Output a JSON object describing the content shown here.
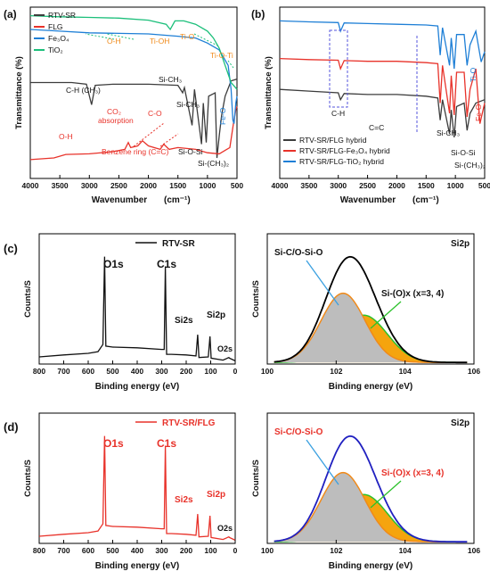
{
  "chart_data": [
    {
      "panel": "(a)",
      "type": "line",
      "xlabel": "Wavenumber",
      "xlabel_unit": "(cm⁻¹)",
      "ylabel": "Transmittance (%)",
      "xlim": [
        4000,
        500
      ],
      "x_ticks": [
        "4000",
        "3500",
        "3000",
        "2500",
        "2000",
        "1500",
        "1000",
        "500"
      ],
      "legend": [
        "RTV-SR",
        "FLG",
        "Fe₃O₄",
        "TiO₂"
      ],
      "series": [
        {
          "name": "RTV-SR",
          "color": "#3c3c3c",
          "points": [
            [
              4000,
              2.8
            ],
            [
              3300,
              2.8
            ],
            [
              3050,
              2.75
            ],
            [
              2962,
              2.15
            ],
            [
              2900,
              2.72
            ],
            [
              2600,
              2.75
            ],
            [
              2000,
              2.75
            ],
            [
              1500,
              2.72
            ],
            [
              1420,
              2.5
            ],
            [
              1390,
              2.65
            ],
            [
              1260,
              1.55
            ],
            [
              1220,
              2.6
            ],
            [
              1100,
              1.0
            ],
            [
              1070,
              2.2
            ],
            [
              1020,
              1.05
            ],
            [
              980,
              2.4
            ],
            [
              870,
              2.5
            ],
            [
              840,
              0.6
            ],
            [
              800,
              1.25
            ],
            [
              760,
              1.85
            ],
            [
              700,
              2.4
            ],
            [
              600,
              2.85
            ],
            [
              500,
              2.9
            ]
          ]
        },
        {
          "name": "FLG",
          "color": "#e8322a",
          "points": [
            [
              4000,
              0.55
            ],
            [
              3600,
              0.6
            ],
            [
              3400,
              0.7
            ],
            [
              3000,
              0.72
            ],
            [
              2600,
              0.78
            ],
            [
              2400,
              0.85
            ],
            [
              2340,
              1.05
            ],
            [
              2300,
              0.9
            ],
            [
              2180,
              0.95
            ],
            [
              2100,
              1.1
            ],
            [
              2000,
              0.95
            ],
            [
              1800,
              0.85
            ],
            [
              1740,
              1.0
            ],
            [
              1650,
              0.85
            ],
            [
              1500,
              0.9
            ],
            [
              1200,
              0.85
            ],
            [
              1000,
              0.75
            ],
            [
              800,
              0.72
            ],
            [
              620,
              0.9
            ],
            [
              560,
              1.6
            ],
            [
              520,
              2.0
            ],
            [
              500,
              2.1
            ]
          ]
        },
        {
          "name": "Fe₃O₄",
          "color": "#1e7fd6",
          "points": [
            [
              4000,
              4.35
            ],
            [
              3500,
              4.3
            ],
            [
              3000,
              4.25
            ],
            [
              2000,
              4.22
            ],
            [
              1500,
              4.15
            ],
            [
              1200,
              4.1
            ],
            [
              1000,
              3.95
            ],
            [
              800,
              3.75
            ],
            [
              650,
              3.3
            ],
            [
              600,
              2.6
            ],
            [
              570,
              1.7
            ],
            [
              550,
              1.6
            ],
            [
              520,
              2.2
            ],
            [
              500,
              2.4
            ]
          ]
        },
        {
          "name": "TiO₂",
          "color": "#1bbf7a",
          "points": [
            [
              4000,
              4.75
            ],
            [
              3500,
              4.72
            ],
            [
              3000,
              4.7
            ],
            [
              2500,
              4.68
            ],
            [
              2000,
              4.62
            ],
            [
              1700,
              4.5
            ],
            [
              1630,
              4.35
            ],
            [
              1550,
              4.6
            ],
            [
              1400,
              4.6
            ],
            [
              1200,
              4.5
            ],
            [
              1000,
              4.3
            ],
            [
              900,
              4.1
            ],
            [
              800,
              3.8
            ],
            [
              700,
              3.3
            ],
            [
              600,
              2.8
            ],
            [
              550,
              2.7
            ],
            [
              500,
              2.6
            ]
          ]
        }
      ],
      "annotations": [
        "O-H",
        "Ti-OH",
        "Ti-O",
        "Ti-O-Ti",
        "C-H (CH₃)",
        "Si-CH₃",
        "Si-CH₃",
        "CO₂",
        "absorption",
        "C-O",
        "O-H",
        "Benzene ring (C=C)",
        "Si-O-Si",
        "Si-(CH₃)₂",
        "Fe-O"
      ]
    },
    {
      "panel": "(b)",
      "type": "line",
      "xlabel": "Wavenumber",
      "xlabel_unit": "(cm⁻¹)",
      "ylabel": "Transmittance (%)",
      "xlim": [
        4000,
        500
      ],
      "x_ticks": [
        "4000",
        "3500",
        "3000",
        "2500",
        "2000",
        "1500",
        "1000",
        "500"
      ],
      "legend": [
        "RTV-SR/FLG hybrid",
        "RTV-SR/FLG-Fe₃O₄ hybrid",
        "RTV-SR/FLG-TiO₂ hybrid"
      ],
      "series": [
        {
          "name": "RTV-SR/FLG hybrid",
          "color": "#3c3c3c",
          "points": [
            [
              4000,
              2.6
            ],
            [
              3500,
              2.55
            ],
            [
              3000,
              2.5
            ],
            [
              2962,
              2.3
            ],
            [
              2900,
              2.48
            ],
            [
              2500,
              2.45
            ],
            [
              2000,
              2.45
            ],
            [
              1500,
              2.4
            ],
            [
              1300,
              2.35
            ],
            [
              1260,
              1.7
            ],
            [
              1220,
              2.3
            ],
            [
              1100,
              1.3
            ],
            [
              1070,
              2.0
            ],
            [
              1020,
              1.2
            ],
            [
              980,
              2.1
            ],
            [
              850,
              2.2
            ],
            [
              800,
              1.4
            ],
            [
              750,
              1.9
            ],
            [
              650,
              2.2
            ],
            [
              500,
              2.3
            ]
          ]
        },
        {
          "name": "RTV-SR/FLG-Fe₃O₄ hybrid",
          "color": "#e8322a",
          "points": [
            [
              4000,
              3.5
            ],
            [
              3500,
              3.47
            ],
            [
              3000,
              3.45
            ],
            [
              2962,
              3.2
            ],
            [
              2900,
              3.44
            ],
            [
              2500,
              3.42
            ],
            [
              2000,
              3.42
            ],
            [
              1500,
              3.38
            ],
            [
              1300,
              3.35
            ],
            [
              1260,
              2.2
            ],
            [
              1220,
              3.3
            ],
            [
              1100,
              1.9
            ],
            [
              1070,
              3.0
            ],
            [
              1020,
              1.85
            ],
            [
              980,
              3.1
            ],
            [
              850,
              3.1
            ],
            [
              800,
              1.8
            ],
            [
              750,
              2.6
            ],
            [
              650,
              3.2
            ],
            [
              580,
              1.6
            ],
            [
              500,
              2.2
            ]
          ]
        },
        {
          "name": "RTV-SR/FLG-TiO₂ hybrid",
          "color": "#1e7fd6",
          "points": [
            [
              4000,
              4.6
            ],
            [
              3500,
              4.57
            ],
            [
              3000,
              4.55
            ],
            [
              2962,
              4.3
            ],
            [
              2900,
              4.54
            ],
            [
              2500,
              4.52
            ],
            [
              2000,
              4.5
            ],
            [
              1500,
              4.48
            ],
            [
              1300,
              4.45
            ],
            [
              1260,
              3.6
            ],
            [
              1220,
              4.4
            ],
            [
              1100,
              3.3
            ],
            [
              1070,
              4.1
            ],
            [
              1020,
              3.2
            ],
            [
              980,
              4.2
            ],
            [
              850,
              4.2
            ],
            [
              800,
              3.3
            ],
            [
              750,
              3.9
            ],
            [
              650,
              4.3
            ],
            [
              560,
              3.4
            ],
            [
              500,
              3.7
            ]
          ]
        }
      ],
      "annotations": [
        "C-H",
        "C=C",
        "Si-CH₃",
        "Si-O-Si",
        "Si-(CH₃)₂",
        "Ti-O",
        "Fe-O"
      ]
    },
    {
      "panel": "(c)",
      "type": "line",
      "xlabel": "Binding energy (eV)",
      "ylabel": "Counts/S",
      "xlim": [
        800,
        0
      ],
      "x_ticks": [
        "800",
        "700",
        "600",
        "500",
        "400",
        "300",
        "200",
        "100",
        "0"
      ],
      "legend": [
        "RTV-SR"
      ],
      "series": [
        {
          "name": "RTV-SR",
          "color": "#111111",
          "points": [
            [
              800,
              0.22
            ],
            [
              700,
              0.28
            ],
            [
              600,
              0.33
            ],
            [
              560,
              0.38
            ],
            [
              540,
              0.6
            ],
            [
              533,
              3.3
            ],
            [
              528,
              0.55
            ],
            [
              500,
              0.52
            ],
            [
              400,
              0.5
            ],
            [
              300,
              0.45
            ],
            [
              290,
              0.45
            ],
            [
              285,
              3.0
            ],
            [
              280,
              0.3
            ],
            [
              260,
              0.3
            ],
            [
              200,
              0.28
            ],
            [
              160,
              0.25
            ],
            [
              153,
              0.9
            ],
            [
              148,
              0.2
            ],
            [
              110,
              0.22
            ],
            [
              103,
              0.85
            ],
            [
              98,
              0.18
            ],
            [
              50,
              0.12
            ],
            [
              26,
              0.2
            ],
            [
              24,
              0.18
            ],
            [
              0,
              0.1
            ]
          ]
        }
      ],
      "peak_labels": [
        "O1s",
        "C1s",
        "Si2s",
        "Si2p",
        "O2s"
      ]
    },
    {
      "panel": "(c) Si2p",
      "type": "area",
      "xlabel": "Binding energy (eV)",
      "ylabel": "Counts/S",
      "xlim": [
        100,
        106
      ],
      "x_ticks": [
        "100",
        "102",
        "104",
        "106"
      ],
      "label": "Si2p",
      "components": [
        {
          "name": "Si-C/O-Si-O",
          "center": 102.2,
          "height": 0.85,
          "fwhm": 1.5,
          "color": "#f08a1a",
          "fill": "#bdbdbd"
        },
        {
          "name": "Si-(O)x (x=3, 4)",
          "center": 102.8,
          "height": 0.58,
          "fwhm": 1.6,
          "color": "#2cc22c",
          "fill": "#f5a40e"
        }
      ],
      "envelope_color": "#000000"
    },
    {
      "panel": "(d)",
      "type": "line",
      "xlabel": "Binding energy (eV)",
      "ylabel": "Counts/S",
      "xlim": [
        800,
        0
      ],
      "x_ticks": [
        "800",
        "700",
        "600",
        "500",
        "400",
        "300",
        "200",
        "100",
        "0"
      ],
      "legend": [
        "RTV-SR/FLG"
      ],
      "series": [
        {
          "name": "RTV-SR/FLG",
          "color": "#e8322a",
          "points": [
            [
              800,
              0.22
            ],
            [
              700,
              0.28
            ],
            [
              600,
              0.33
            ],
            [
              560,
              0.38
            ],
            [
              540,
              0.6
            ],
            [
              533,
              3.3
            ],
            [
              528,
              0.55
            ],
            [
              500,
              0.52
            ],
            [
              400,
              0.5
            ],
            [
              300,
              0.45
            ],
            [
              290,
              0.45
            ],
            [
              285,
              3.0
            ],
            [
              280,
              0.3
            ],
            [
              260,
              0.3
            ],
            [
              200,
              0.28
            ],
            [
              160,
              0.25
            ],
            [
              153,
              0.9
            ],
            [
              148,
              0.2
            ],
            [
              110,
              0.22
            ],
            [
              103,
              0.85
            ],
            [
              98,
              0.18
            ],
            [
              50,
              0.12
            ],
            [
              26,
              0.2
            ],
            [
              24,
              0.18
            ],
            [
              0,
              0.1
            ]
          ]
        }
      ],
      "peak_labels": [
        "O1s",
        "C1s",
        "Si2s",
        "Si2p",
        "O2s"
      ]
    },
    {
      "panel": "(d) Si2p",
      "type": "area",
      "xlabel": "Binding energy (eV)",
      "ylabel": "Counts/S",
      "xlim": [
        100,
        106
      ],
      "x_ticks": [
        "100",
        "102",
        "104",
        "106"
      ],
      "label": "Si2p",
      "components": [
        {
          "name": "Si-C/O-Si-O",
          "center": 102.2,
          "height": 0.85,
          "fwhm": 1.5,
          "color": "#f08a1a",
          "fill": "#bdbdbd"
        },
        {
          "name": "Si-(O)x (x=3, 4)",
          "center": 102.8,
          "height": 0.58,
          "fwhm": 1.6,
          "color": "#2cc22c",
          "fill": "#f5a40e"
        }
      ],
      "envelope_color": "#2020c0"
    }
  ]
}
